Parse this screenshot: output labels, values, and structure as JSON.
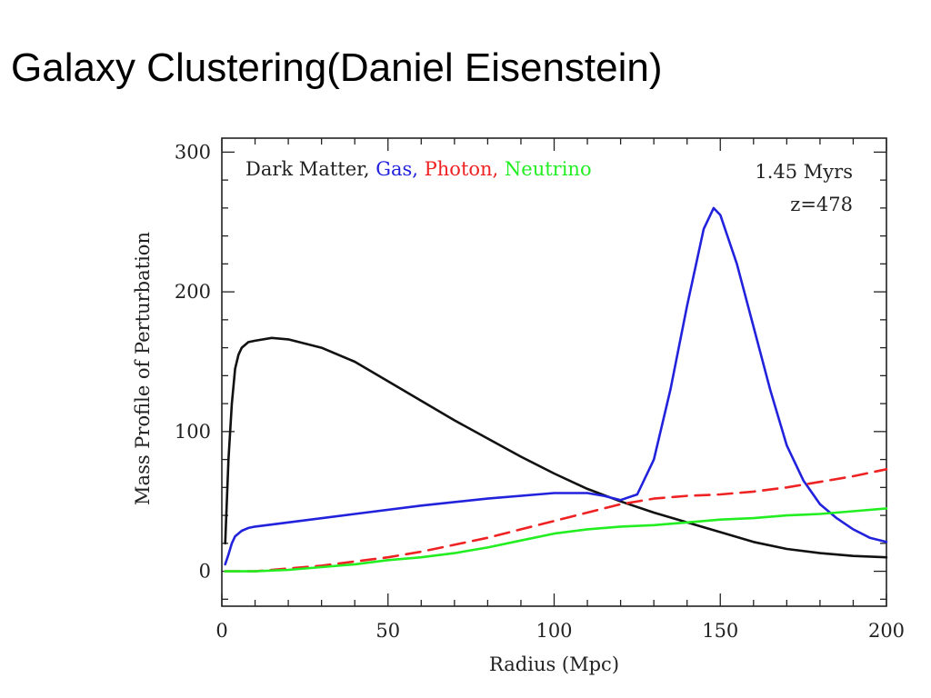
{
  "slide": {
    "title": "Galaxy Clustering(Daniel Eisenstein)"
  },
  "chart_data": {
    "type": "line",
    "title": "",
    "xlabel": "Radius (Mpc)",
    "ylabel": "Mass Profile of Perturbation",
    "xlim": [
      0,
      200
    ],
    "ylim": [
      -25,
      310
    ],
    "x_ticks": [
      0,
      50,
      100,
      150,
      200
    ],
    "y_ticks": [
      0,
      100,
      200,
      300
    ],
    "grid": false,
    "legend": {
      "placement": "top-left",
      "entries": [
        {
          "label": "Dark Matter,",
          "color": "#222222"
        },
        {
          "label": "Gas,",
          "color": "#2222dd"
        },
        {
          "label": "Photon,",
          "color": "#ee2222"
        },
        {
          "label": "Neutrino",
          "color": "#22ee22"
        }
      ]
    },
    "annotations": [
      "1.45 Myrs",
      "z=478"
    ],
    "series": [
      {
        "name": "Dark Matter",
        "color": "#111111",
        "style": "solid",
        "x": [
          1,
          2,
          3,
          4,
          5,
          6,
          8,
          10,
          15,
          20,
          30,
          40,
          50,
          60,
          70,
          80,
          90,
          100,
          110,
          120,
          130,
          140,
          150,
          160,
          170,
          180,
          190,
          200
        ],
        "y": [
          20,
          80,
          120,
          145,
          155,
          160,
          164,
          165,
          167,
          166,
          160,
          150,
          136,
          122,
          108,
          95,
          82,
          70,
          59,
          50,
          42,
          35,
          28,
          21,
          16,
          13,
          11,
          10
        ]
      },
      {
        "name": "Gas",
        "color": "#2222dd",
        "style": "solid",
        "x": [
          1,
          2,
          3,
          4,
          6,
          8,
          10,
          20,
          40,
          60,
          80,
          100,
          110,
          115,
          120,
          125,
          130,
          135,
          140,
          145,
          148,
          150,
          155,
          160,
          165,
          170,
          175,
          180,
          185,
          190,
          195,
          200
        ],
        "y": [
          5,
          12,
          20,
          25,
          29,
          31,
          32,
          35,
          41,
          47,
          52,
          56,
          56,
          54,
          51,
          55,
          80,
          130,
          190,
          245,
          260,
          255,
          220,
          175,
          130,
          90,
          65,
          48,
          38,
          30,
          24,
          21
        ]
      },
      {
        "name": "Photon",
        "color": "#ee2222",
        "style": "dashed",
        "x": [
          1,
          5,
          10,
          20,
          30,
          40,
          50,
          60,
          70,
          80,
          90,
          100,
          110,
          120,
          130,
          140,
          150,
          160,
          170,
          180,
          190,
          200
        ],
        "y": [
          0,
          0,
          0,
          2,
          4,
          7,
          10,
          14,
          19,
          24,
          30,
          36,
          42,
          48,
          52,
          54,
          55,
          57,
          60,
          64,
          68,
          73
        ]
      },
      {
        "name": "Neutrino",
        "color": "#22ee22",
        "style": "solid",
        "x": [
          1,
          10,
          20,
          30,
          40,
          50,
          60,
          70,
          80,
          90,
          100,
          110,
          120,
          130,
          140,
          150,
          160,
          170,
          180,
          190,
          200
        ],
        "y": [
          0,
          0,
          1,
          3,
          5,
          8,
          10,
          13,
          17,
          22,
          27,
          30,
          32,
          33,
          35,
          37,
          38,
          40,
          41,
          43,
          45
        ]
      }
    ]
  }
}
